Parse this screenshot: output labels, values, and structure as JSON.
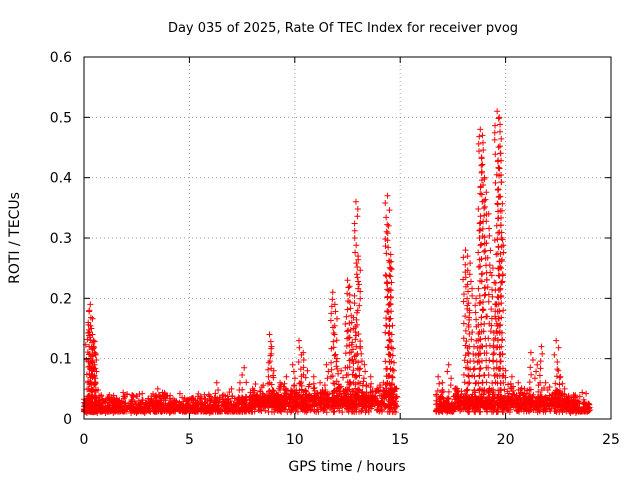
{
  "chart_data": {
    "type": "scatter",
    "title": "Day 035 of 2025, Rate Of TEC Index for receiver pvog",
    "xlabel": "GPS time / hours",
    "ylabel": "ROTI / TECUs",
    "xlim": [
      0,
      25
    ],
    "ylim": [
      0,
      0.6
    ],
    "xticks": [
      0,
      5,
      10,
      15,
      20,
      25
    ],
    "xtick_labels": [
      "0",
      "5",
      "10",
      "15",
      "20",
      "25"
    ],
    "yticks": [
      0,
      0.1,
      0.2,
      0.3,
      0.4,
      0.5,
      0.6
    ],
    "ytick_labels": [
      "0",
      "0.1",
      "0.2",
      "0.3",
      "0.4",
      "0.5",
      "0.6"
    ],
    "grid": true,
    "marker": "+",
    "color": "#ff0000",
    "series": [
      {
        "name": "ROTI",
        "x": [
          0.0,
          0.1,
          0.2,
          0.25,
          0.3,
          0.35,
          0.4,
          0.45,
          0.5,
          0.55,
          0.6,
          0.3,
          0.4,
          0.5,
          0.45,
          0.35,
          0.7,
          0.9,
          1.2,
          1.5,
          1.8,
          2.2,
          2.6,
          2.9,
          3.3,
          3.5,
          3.6,
          4.0,
          4.5,
          5.0,
          5.5,
          6.0,
          6.3,
          6.6,
          7.0,
          7.4,
          7.6,
          8.0,
          8.5,
          8.8,
          8.9,
          9.0,
          9.3,
          9.6,
          9.9,
          10.2,
          10.4,
          10.6,
          10.9,
          11.2,
          11.5,
          11.8,
          11.9,
          12.0,
          12.2,
          12.5,
          12.6,
          12.7,
          12.8,
          12.9,
          13.0,
          13.1,
          13.3,
          13.6,
          13.9,
          14.2,
          14.4,
          14.45,
          14.5,
          14.55,
          14.6,
          14.7,
          14.8,
          16.8,
          17.0,
          17.3,
          17.6,
          17.9,
          18.1,
          18.2,
          18.3,
          18.5,
          18.6,
          18.7,
          18.8,
          18.9,
          19.0,
          19.2,
          19.4,
          19.5,
          19.6,
          19.7,
          19.75,
          19.8,
          20.0,
          20.3,
          20.6,
          20.9,
          21.2,
          21.5,
          21.7,
          21.9,
          22.2,
          22.4,
          22.5,
          22.6,
          22.8,
          23.1,
          23.4,
          23.7,
          24.0
        ],
        "y": [
          0.015,
          0.02,
          0.16,
          0.18,
          0.19,
          0.15,
          0.14,
          0.12,
          0.09,
          0.06,
          0.03,
          0.1,
          0.08,
          0.11,
          0.13,
          0.05,
          0.025,
          0.03,
          0.04,
          0.03,
          0.025,
          0.02,
          0.03,
          0.02,
          0.025,
          0.05,
          0.04,
          0.02,
          0.015,
          0.02,
          0.025,
          0.03,
          0.06,
          0.04,
          0.05,
          0.06,
          0.085,
          0.05,
          0.04,
          0.14,
          0.12,
          0.08,
          0.06,
          0.07,
          0.09,
          0.13,
          0.11,
          0.08,
          0.07,
          0.06,
          0.09,
          0.21,
          0.19,
          0.1,
          0.08,
          0.23,
          0.22,
          0.16,
          0.15,
          0.36,
          0.27,
          0.12,
          0.09,
          0.07,
          0.05,
          0.06,
          0.37,
          0.32,
          0.26,
          0.25,
          0.14,
          0.08,
          0.05,
          0.07,
          0.06,
          0.09,
          0.05,
          0.04,
          0.28,
          0.27,
          0.24,
          0.12,
          0.2,
          0.13,
          0.48,
          0.47,
          0.4,
          0.34,
          0.25,
          0.17,
          0.51,
          0.5,
          0.44,
          0.3,
          0.08,
          0.07,
          0.06,
          0.05,
          0.11,
          0.09,
          0.12,
          0.06,
          0.04,
          0.13,
          0.08,
          0.07,
          0.05,
          0.03,
          0.02,
          0.025,
          0.015
        ]
      }
    ]
  }
}
